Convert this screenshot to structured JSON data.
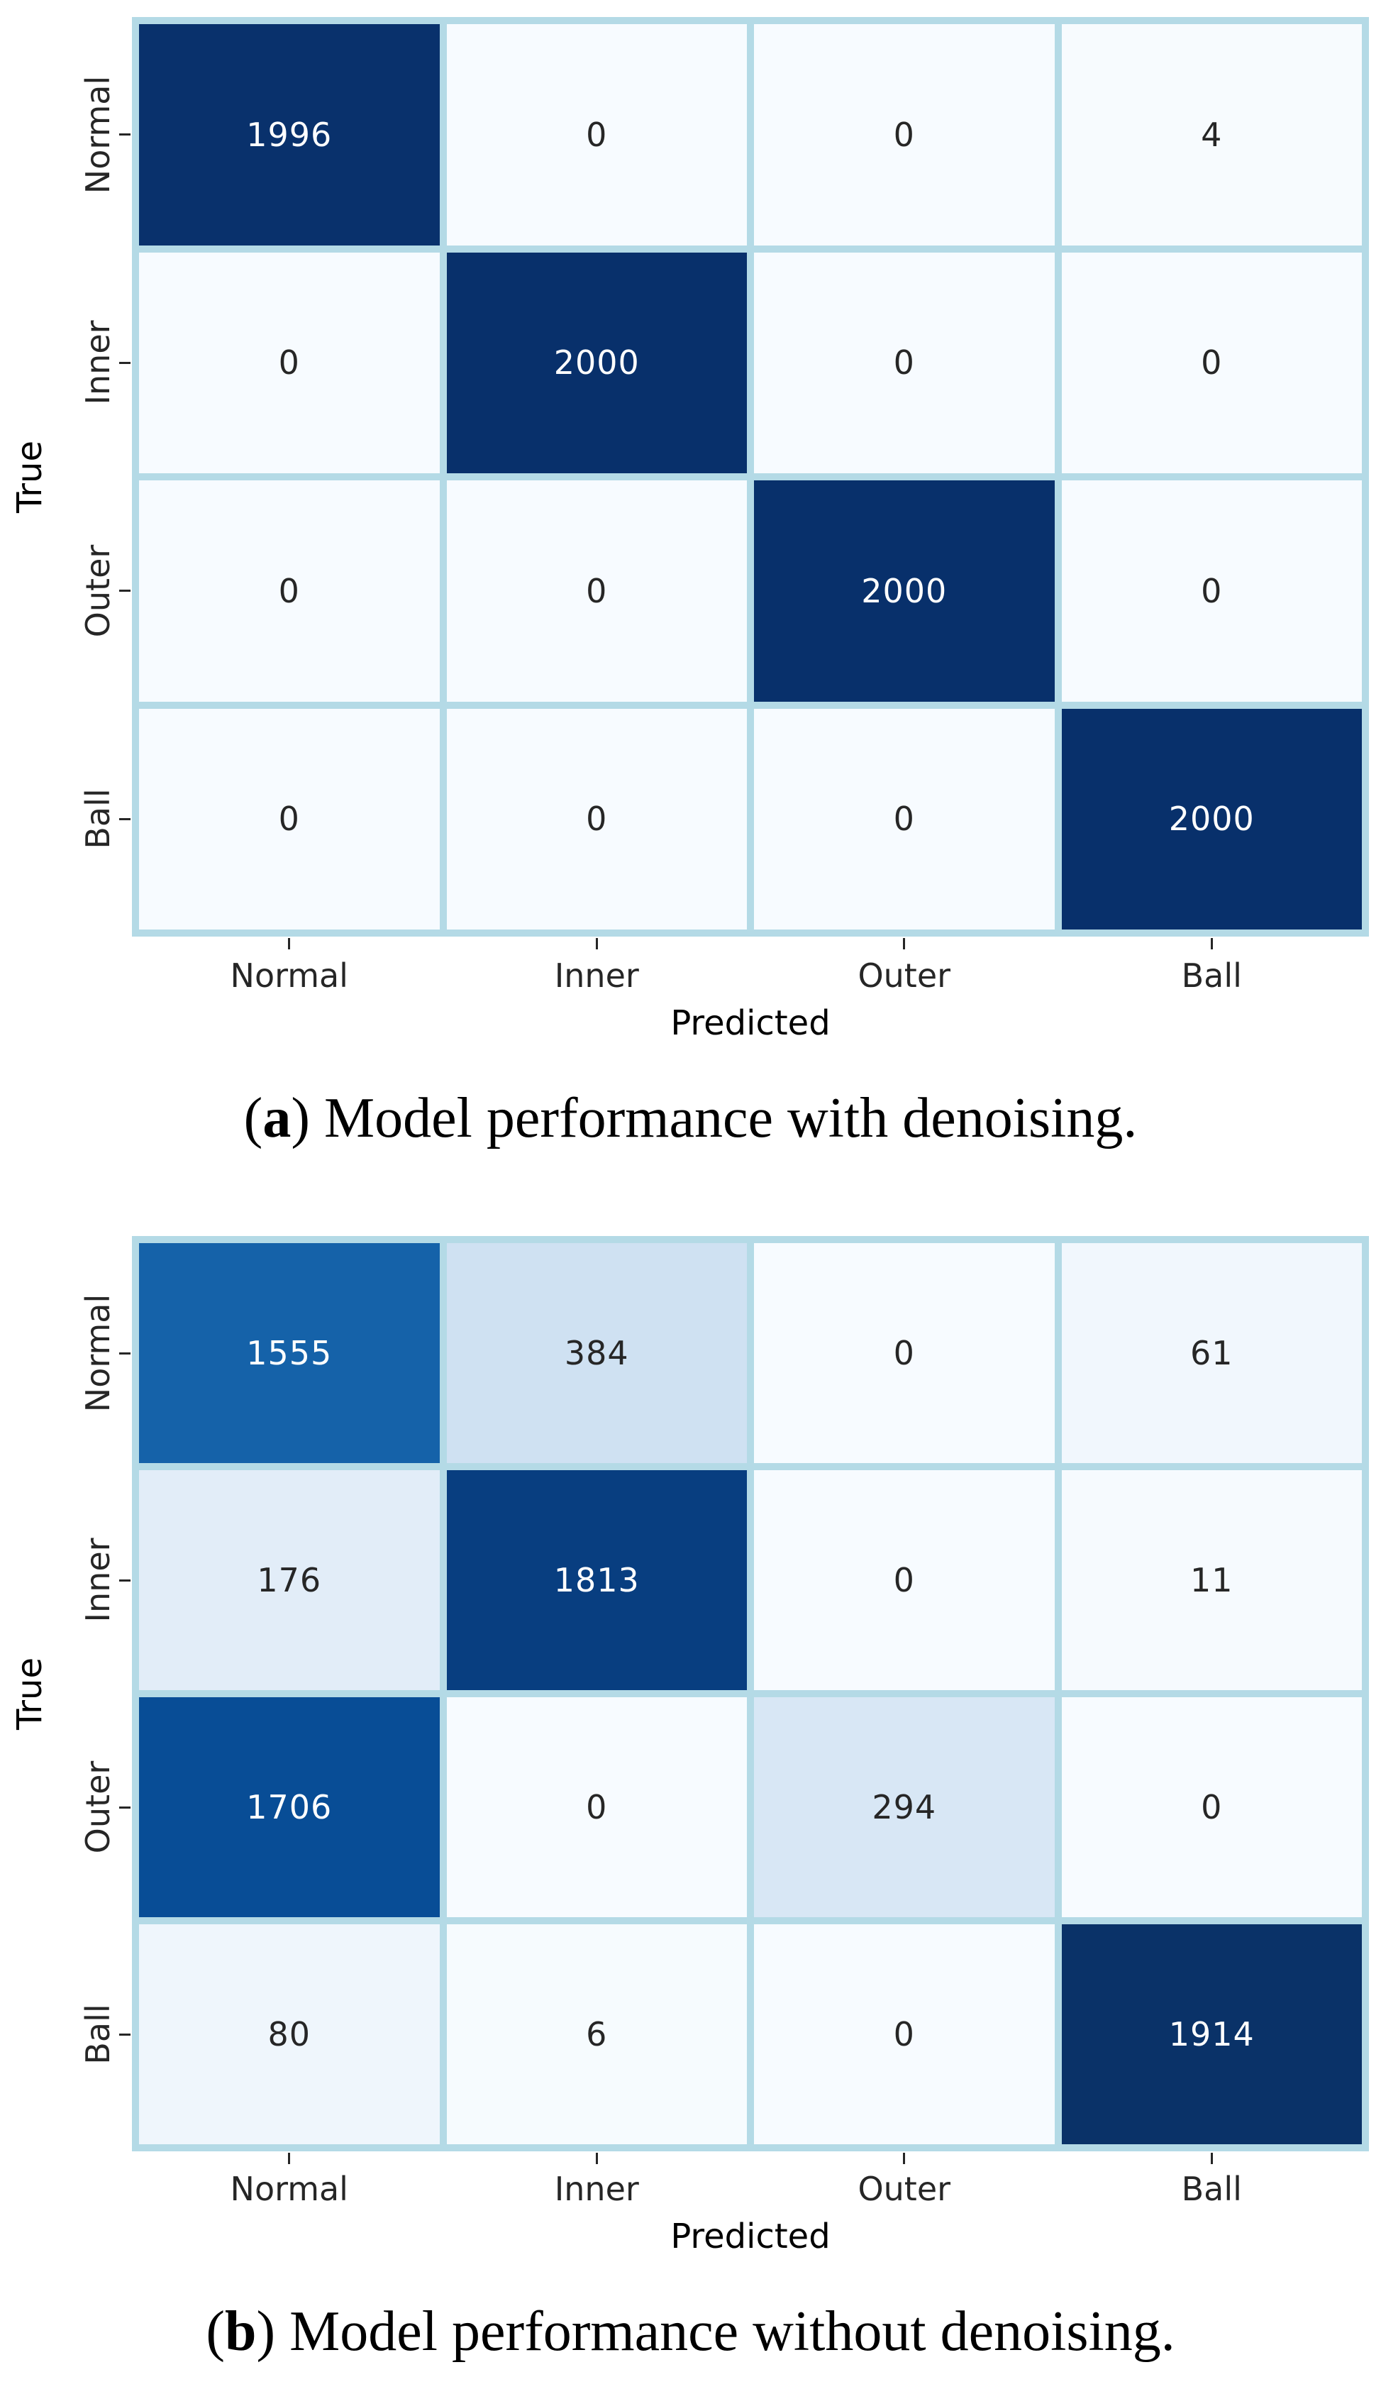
{
  "styles": {
    "grid_line_color": "#b4dae6",
    "dark_text": "#262626",
    "light_text": "#ffffff",
    "colormap": "Blues"
  },
  "figures": [
    {
      "id": "a",
      "y_axis_label": "True",
      "x_axis_label": "Predicted",
      "row_labels": [
        "Normal",
        "Inner",
        "Outer",
        "Ball"
      ],
      "col_labels": [
        "Normal",
        "Inner",
        "Outer",
        "Ball"
      ],
      "values": [
        [
          1996,
          0,
          0,
          4
        ],
        [
          0,
          2000,
          0,
          0
        ],
        [
          0,
          0,
          2000,
          0
        ],
        [
          0,
          0,
          0,
          2000
        ]
      ],
      "cell_colors": [
        [
          "#09316c",
          "#f7fbff",
          "#f7fbff",
          "#f7fbfe"
        ],
        [
          "#f7fbff",
          "#08306b",
          "#f7fbff",
          "#f7fbff"
        ],
        [
          "#f7fbff",
          "#f7fbff",
          "#08306b",
          "#f7fbff"
        ],
        [
          "#f7fbff",
          "#f7fbff",
          "#f7fbff",
          "#08306b"
        ]
      ],
      "text_colors": [
        [
          "#ffffff",
          "#262626",
          "#262626",
          "#262626"
        ],
        [
          "#262626",
          "#ffffff",
          "#262626",
          "#262626"
        ],
        [
          "#262626",
          "#262626",
          "#ffffff",
          "#262626"
        ],
        [
          "#262626",
          "#262626",
          "#262626",
          "#ffffff"
        ]
      ],
      "caption": {
        "open": "(",
        "label": "a",
        "close": ")",
        "text": "Model performance with denoising."
      }
    },
    {
      "id": "b",
      "y_axis_label": "True",
      "x_axis_label": "Predicted",
      "row_labels": [
        "Normal",
        "Inner",
        "Outer",
        "Ball"
      ],
      "col_labels": [
        "Normal",
        "Inner",
        "Outer",
        "Ball"
      ],
      "values": [
        [
          1555,
          384,
          0,
          61
        ],
        [
          176,
          1813,
          0,
          11
        ],
        [
          1706,
          0,
          294,
          0
        ],
        [
          80,
          6,
          0,
          1914
        ]
      ],
      "cell_colors": [
        [
          "#1562a9",
          "#cfe1f2",
          "#f7fbff",
          "#f1f7fd"
        ],
        [
          "#e2edf8",
          "#083e80",
          "#f7fbff",
          "#f6fafe"
        ],
        [
          "#084d96",
          "#f7fbff",
          "#d8e7f5",
          "#f7fbff"
        ],
        [
          "#eff6fc",
          "#f6fbfe",
          "#f7fbff",
          "#0a3268"
        ]
      ],
      "text_colors": [
        [
          "#ffffff",
          "#262626",
          "#262626",
          "#262626"
        ],
        [
          "#262626",
          "#ffffff",
          "#262626",
          "#262626"
        ],
        [
          "#ffffff",
          "#262626",
          "#262626",
          "#262626"
        ],
        [
          "#262626",
          "#262626",
          "#262626",
          "#ffffff"
        ]
      ],
      "caption": {
        "open": "(",
        "label": "b",
        "close": ")",
        "text": "Model performance without denoising."
      }
    }
  ],
  "chart_data": [
    {
      "type": "heatmap",
      "title": "(a) Model performance with denoising.",
      "xlabel": "Predicted",
      "ylabel": "True",
      "x": [
        "Normal",
        "Inner",
        "Outer",
        "Ball"
      ],
      "y": [
        "Normal",
        "Inner",
        "Outer",
        "Ball"
      ],
      "values": [
        [
          1996,
          0,
          0,
          4
        ],
        [
          0,
          2000,
          0,
          0
        ],
        [
          0,
          0,
          2000,
          0
        ],
        [
          0,
          0,
          0,
          2000
        ]
      ],
      "colormap": "Blues",
      "vmin": 0,
      "vmax": 2000,
      "annotated": true,
      "legend_position": "none",
      "grid": true
    },
    {
      "type": "heatmap",
      "title": "(b) Model performance without denoising.",
      "xlabel": "Predicted",
      "ylabel": "True",
      "x": [
        "Normal",
        "Inner",
        "Outer",
        "Ball"
      ],
      "y": [
        "Normal",
        "Inner",
        "Outer",
        "Ball"
      ],
      "values": [
        [
          1555,
          384,
          0,
          61
        ],
        [
          176,
          1813,
          0,
          11
        ],
        [
          1706,
          0,
          294,
          0
        ],
        [
          80,
          6,
          0,
          1914
        ]
      ],
      "colormap": "Blues",
      "vmin": 0,
      "vmax": 1914,
      "annotated": true,
      "legend_position": "none",
      "grid": true
    }
  ]
}
